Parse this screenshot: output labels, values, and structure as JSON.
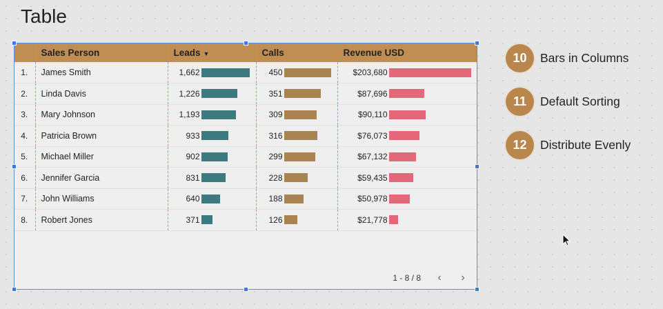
{
  "page": {
    "title": "Table"
  },
  "table": {
    "columns": {
      "name": "Sales Person",
      "leads": "Leads",
      "leads_sort_indicator": "▼",
      "calls": "Calls",
      "revenue": "Revenue USD"
    },
    "rows": [
      {
        "index": "1.",
        "name": "James Smith",
        "leads": "1,662",
        "leads_value": 1662,
        "calls": "450",
        "calls_value": 450,
        "revenue": "$203,680",
        "revenue_value": 203680
      },
      {
        "index": "2.",
        "name": "Linda Davis",
        "leads": "1,226",
        "leads_value": 1226,
        "calls": "351",
        "calls_value": 351,
        "revenue": "$87,696",
        "revenue_value": 87696
      },
      {
        "index": "3.",
        "name": "Mary Johnson",
        "leads": "1,193",
        "leads_value": 1193,
        "calls": "309",
        "calls_value": 309,
        "revenue": "$90,110",
        "revenue_value": 90110
      },
      {
        "index": "4.",
        "name": "Patricia Brown",
        "leads": "933",
        "leads_value": 933,
        "calls": "316",
        "calls_value": 316,
        "revenue": "$76,073",
        "revenue_value": 76073
      },
      {
        "index": "5.",
        "name": "Michael Miller",
        "leads": "902",
        "leads_value": 902,
        "calls": "299",
        "calls_value": 299,
        "revenue": "$67,132",
        "revenue_value": 67132
      },
      {
        "index": "6.",
        "name": "Jennifer Garcia",
        "leads": "831",
        "leads_value": 831,
        "calls": "228",
        "calls_value": 228,
        "revenue": "$59,435",
        "revenue_value": 59435
      },
      {
        "index": "7.",
        "name": "John Williams",
        "leads": "640",
        "leads_value": 640,
        "calls": "188",
        "calls_value": 188,
        "revenue": "$50,978",
        "revenue_value": 50978
      },
      {
        "index": "8.",
        "name": "Robert Jones",
        "leads": "371",
        "leads_value": 371,
        "calls": "126",
        "calls_value": 126,
        "revenue": "$21,778",
        "revenue_value": 21778
      }
    ],
    "bar_colors": {
      "leads": "#3d7a80",
      "calls": "#a98350",
      "revenue": "#e2687a"
    },
    "header_color": "#c08e53",
    "pagination": {
      "range": "1 - 8 / 8",
      "prev_icon": "chevron-left-icon",
      "next_icon": "chevron-right-icon"
    }
  },
  "features": [
    {
      "number": "10",
      "label": "Bars in Columns"
    },
    {
      "number": "11",
      "label": "Default Sorting"
    },
    {
      "number": "12",
      "label": "Distribute Evenly"
    }
  ],
  "colors": {
    "badge": "#b9874e",
    "selection": "#3b78e7"
  }
}
